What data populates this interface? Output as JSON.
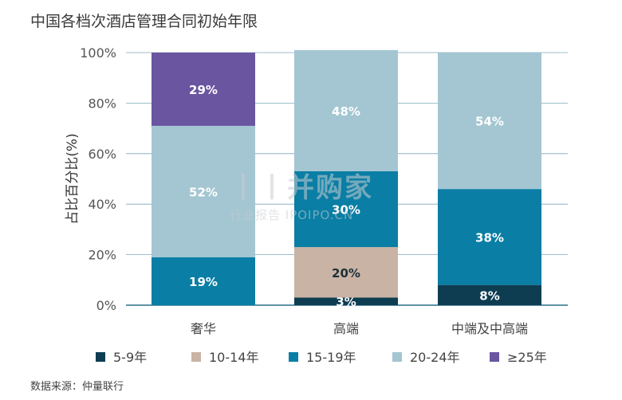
{
  "title": "中国各档次酒店管理合同初始年限",
  "source": "数据来源：仲量联行",
  "watermark": {
    "brand": "丨丨并购家",
    "sub": "行业报告 IPOIPO.CN"
  },
  "colors": {
    "5-9年": "#0e3d52",
    "10-14年": "#c9b3a4",
    "15-19年": "#0a7ea4",
    "20-24年": "#a3c6d2",
    "≥25年": "#6a55a0"
  },
  "chart_data": {
    "type": "bar",
    "stacked": true,
    "categories": [
      "奢华",
      "高端",
      "中端及中高端"
    ],
    "ylabel": "占比百分比(%)",
    "xlabel": "",
    "ylim": [
      0,
      100
    ],
    "yticks": [
      "0%",
      "20%",
      "40%",
      "60%",
      "80%",
      "100%"
    ],
    "grid": true,
    "legend_position": "bottom",
    "series": [
      {
        "name": "5-9年",
        "values": [
          0,
          3,
          8
        ],
        "labels": [
          "",
          "3%",
          "8%"
        ]
      },
      {
        "name": "10-14年",
        "values": [
          0,
          20,
          0
        ],
        "labels": [
          "",
          "20%",
          ""
        ]
      },
      {
        "name": "15-19年",
        "values": [
          19,
          30,
          38
        ],
        "labels": [
          "19%",
          "30%",
          "38%"
        ]
      },
      {
        "name": "20-24年",
        "values": [
          52,
          48,
          54
        ],
        "labels": [
          "52%",
          "48%",
          "54%"
        ]
      },
      {
        "name": "≥25年",
        "values": [
          29,
          0,
          0
        ],
        "labels": [
          "29%",
          "",
          ""
        ]
      }
    ]
  }
}
